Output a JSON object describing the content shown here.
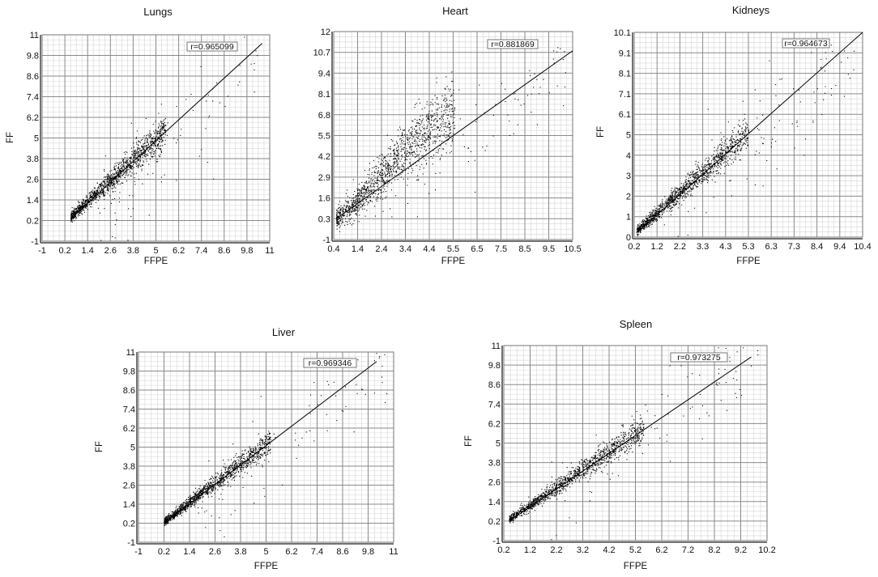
{
  "chart_data": [
    {
      "type": "scatter",
      "title": "Lungs",
      "xlabel": "FFPE",
      "ylabel": "FF",
      "annotation": "r=0.965099",
      "xlim": [
        -1,
        11
      ],
      "ylim": [
        -1,
        11
      ],
      "xticks": [
        "-1",
        "0.2",
        "1.4",
        "2.6",
        "3.8",
        "5",
        "6.2",
        "7.4",
        "8.6",
        "9.8",
        "11"
      ],
      "yticks": [
        "-1",
        "0.2",
        "1.4",
        "2.6",
        "3.8",
        "5",
        "6.2",
        "7.4",
        "8.6",
        "9.8",
        "11"
      ],
      "grid": true,
      "fit_line": {
        "from": [
          0.5,
          0.3
        ],
        "to": [
          10.6,
          10.5
        ]
      },
      "cloud": {
        "x_range": [
          0.5,
          6.5
        ],
        "spread": 0.35
      }
    },
    {
      "type": "scatter",
      "title": "Heart",
      "xlabel": "FFPE",
      "ylabel": "",
      "annotation": "r=0.881869",
      "xlim": [
        0.4,
        10.5
      ],
      "ylim": [
        -1,
        12
      ],
      "xticks": [
        "0.4",
        "1.4",
        "2.4",
        "3.4",
        "4.4",
        "5.5",
        "6.5",
        "7.5",
        "8.5",
        "9.5",
        "10.5"
      ],
      "yticks": [
        "-1",
        "0.3",
        "1.6",
        "2.9",
        "4.2",
        "5.5",
        "6.8",
        "8.1",
        "9.4",
        "10.7",
        "12"
      ],
      "grid": true,
      "fit_line": {
        "from": [
          0.5,
          0.3
        ],
        "to": [
          10.5,
          10.8
        ]
      },
      "cloud": {
        "x_range": [
          0.5,
          6.5
        ],
        "spread": 0.8
      }
    },
    {
      "type": "scatter",
      "title": "Kidneys",
      "xlabel": "FFPE",
      "ylabel": "FF",
      "annotation": "r=0.964673",
      "xlim": [
        0.2,
        10.4
      ],
      "ylim": [
        0,
        10.1
      ],
      "xticks": [
        "0.2",
        "1.2",
        "2.2",
        "3.3",
        "4.3",
        "5.3",
        "6.3",
        "7.3",
        "8.4",
        "9.4",
        "10.4"
      ],
      "yticks": [
        "0",
        "1",
        "2",
        "3",
        "4",
        "5",
        "6.1",
        "7.1",
        "8.1",
        "9.1",
        "10.1"
      ],
      "grid": true,
      "fit_line": {
        "from": [
          0.3,
          0.2
        ],
        "to": [
          10.4,
          10.1
        ]
      },
      "cloud": {
        "x_range": [
          0.3,
          6.3
        ],
        "spread": 0.3
      }
    },
    {
      "type": "scatter",
      "title": "Liver",
      "xlabel": "FFPE",
      "ylabel": "FF",
      "annotation": "r=0.969346",
      "xlim": [
        -1,
        11
      ],
      "ylim": [
        -1,
        11
      ],
      "xticks": [
        "-1",
        "0.2",
        "1.4",
        "2.6",
        "3.8",
        "5",
        "6.2",
        "7.4",
        "8.6",
        "9.8",
        "11"
      ],
      "yticks": [
        "-1",
        "0.2",
        "1.4",
        "2.6",
        "3.8",
        "5",
        "6.2",
        "7.4",
        "8.6",
        "9.8",
        "11"
      ],
      "grid": true,
      "fit_line": {
        "from": [
          0.2,
          0.2
        ],
        "to": [
          10.2,
          10.4
        ]
      },
      "cloud": {
        "x_range": [
          0.2,
          6.2
        ],
        "spread": 0.3
      }
    },
    {
      "type": "scatter",
      "title": "Spleen",
      "xlabel": "FFPE",
      "ylabel": "FF",
      "annotation": "r=0.973275",
      "xlim": [
        0.2,
        10.2
      ],
      "ylim": [
        -1,
        11
      ],
      "xticks": [
        "0.2",
        "1.2",
        "2.2",
        "3.2",
        "4.2",
        "5.2",
        "6.2",
        "7.2",
        "8.2",
        "9.2",
        "10.2"
      ],
      "yticks": [
        "-1",
        "0.2",
        "1.4",
        "2.6",
        "3.8",
        "5",
        "6.2",
        "7.4",
        "8.6",
        "9.8",
        "11"
      ],
      "grid": true,
      "fit_line": {
        "from": [
          0.4,
          0.2
        ],
        "to": [
          9.6,
          10.3
        ]
      },
      "cloud": {
        "x_range": [
          0.4,
          6.5
        ],
        "spread": 0.3
      }
    }
  ],
  "colors": {
    "points": "#000000",
    "major_grid": "#8a8a8a",
    "minor_grid": "#d4d4d4",
    "axis": "#777777"
  }
}
